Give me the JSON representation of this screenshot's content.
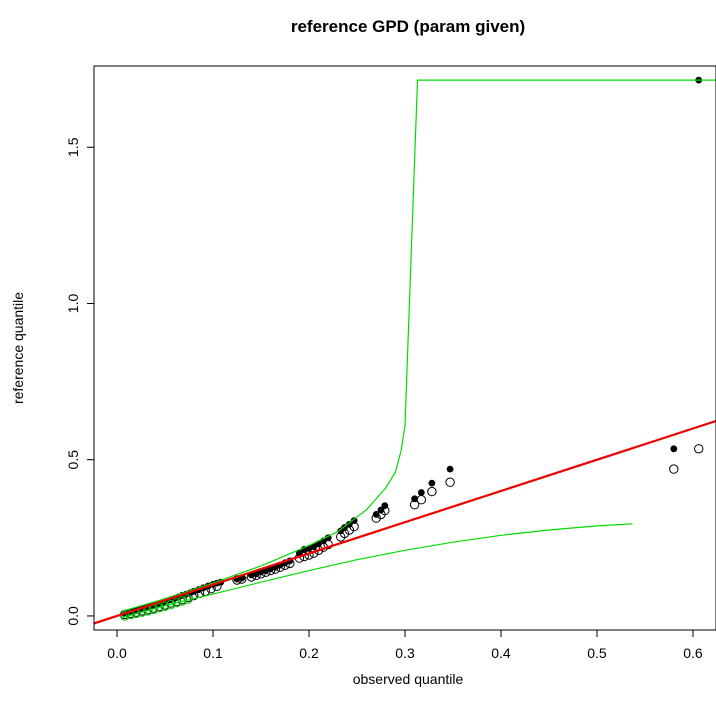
{
  "chart_data": {
    "type": "scatter",
    "title": "reference GPD (param given)",
    "xlabel": "observed quantile",
    "ylabel": "reference quantile",
    "xlim": [
      -0.024,
      0.624
    ],
    "ylim": [
      -0.045,
      1.76
    ],
    "x_ticks": [
      0.0,
      0.1,
      0.2,
      0.3,
      0.4,
      0.5,
      0.6
    ],
    "x_tick_labels": [
      "0.0",
      "0.1",
      "0.2",
      "0.3",
      "0.4",
      "0.5",
      "0.6"
    ],
    "y_ticks": [
      0.0,
      0.5,
      1.0,
      1.5
    ],
    "y_tick_labels": [
      "0.0",
      "0.5",
      "1.0",
      "1.5"
    ],
    "grid": false,
    "series": [
      {
        "marker": "filled-circle",
        "color": "#000000",
        "points": [
          [
            0.008,
            0.008
          ],
          [
            0.012,
            0.01
          ],
          [
            0.016,
            0.014
          ],
          [
            0.02,
            0.017
          ],
          [
            0.024,
            0.021
          ],
          [
            0.028,
            0.025
          ],
          [
            0.032,
            0.028
          ],
          [
            0.036,
            0.032
          ],
          [
            0.04,
            0.036
          ],
          [
            0.044,
            0.04
          ],
          [
            0.048,
            0.044
          ],
          [
            0.052,
            0.048
          ],
          [
            0.056,
            0.052
          ],
          [
            0.06,
            0.056
          ],
          [
            0.064,
            0.061
          ],
          [
            0.068,
            0.066
          ],
          [
            0.072,
            0.07
          ],
          [
            0.076,
            0.074
          ],
          [
            0.08,
            0.079
          ],
          [
            0.085,
            0.084
          ],
          [
            0.09,
            0.09
          ],
          [
            0.095,
            0.096
          ],
          [
            0.1,
            0.101
          ],
          [
            0.104,
            0.105
          ],
          [
            0.108,
            0.108
          ],
          [
            0.125,
            0.118
          ],
          [
            0.13,
            0.121
          ],
          [
            0.14,
            0.131
          ],
          [
            0.145,
            0.135
          ],
          [
            0.15,
            0.141
          ],
          [
            0.155,
            0.145
          ],
          [
            0.16,
            0.151
          ],
          [
            0.165,
            0.156
          ],
          [
            0.17,
            0.163
          ],
          [
            0.175,
            0.17
          ],
          [
            0.18,
            0.176
          ],
          [
            0.19,
            0.2
          ],
          [
            0.195,
            0.213
          ],
          [
            0.2,
            0.216
          ],
          [
            0.205,
            0.222
          ],
          [
            0.21,
            0.231
          ],
          [
            0.215,
            0.24
          ],
          [
            0.22,
            0.25
          ],
          [
            0.233,
            0.272
          ],
          [
            0.237,
            0.283
          ],
          [
            0.242,
            0.293
          ],
          [
            0.247,
            0.305
          ],
          [
            0.27,
            0.325
          ],
          [
            0.275,
            0.339
          ],
          [
            0.279,
            0.353
          ],
          [
            0.31,
            0.375
          ],
          [
            0.317,
            0.395
          ],
          [
            0.328,
            0.425
          ],
          [
            0.347,
            0.47
          ],
          [
            0.58,
            0.535
          ],
          [
            0.606,
            1.715
          ]
        ]
      },
      {
        "marker": "open-circle",
        "color": "#000000",
        "points": [
          [
            0.008,
            0.005
          ],
          [
            0.014,
            0.008
          ],
          [
            0.02,
            0.012
          ],
          [
            0.026,
            0.016
          ],
          [
            0.032,
            0.02
          ],
          [
            0.038,
            0.025
          ],
          [
            0.044,
            0.03
          ],
          [
            0.05,
            0.035
          ],
          [
            0.056,
            0.041
          ],
          [
            0.062,
            0.046
          ],
          [
            0.068,
            0.052
          ],
          [
            0.074,
            0.059
          ],
          [
            0.08,
            0.065
          ],
          [
            0.086,
            0.072
          ],
          [
            0.092,
            0.079
          ],
          [
            0.098,
            0.087
          ],
          [
            0.104,
            0.095
          ],
          [
            0.125,
            0.115
          ],
          [
            0.13,
            0.118
          ],
          [
            0.14,
            0.125
          ],
          [
            0.145,
            0.13
          ],
          [
            0.15,
            0.135
          ],
          [
            0.155,
            0.14
          ],
          [
            0.16,
            0.145
          ],
          [
            0.165,
            0.15
          ],
          [
            0.17,
            0.156
          ],
          [
            0.175,
            0.162
          ],
          [
            0.18,
            0.168
          ],
          [
            0.19,
            0.185
          ],
          [
            0.195,
            0.19
          ],
          [
            0.2,
            0.195
          ],
          [
            0.205,
            0.201
          ],
          [
            0.21,
            0.21
          ],
          [
            0.215,
            0.22
          ],
          [
            0.22,
            0.229
          ],
          [
            0.233,
            0.253
          ],
          [
            0.237,
            0.264
          ],
          [
            0.242,
            0.275
          ],
          [
            0.247,
            0.286
          ],
          [
            0.27,
            0.313
          ],
          [
            0.275,
            0.325
          ],
          [
            0.279,
            0.337
          ],
          [
            0.31,
            0.356
          ],
          [
            0.317,
            0.372
          ],
          [
            0.328,
            0.398
          ],
          [
            0.347,
            0.428
          ],
          [
            0.58,
            0.47
          ],
          [
            0.606,
            0.535
          ]
        ]
      },
      {
        "marker": "open-circle",
        "color": "#00CC00",
        "points": [
          [
            0.008,
            0.0
          ],
          [
            0.014,
            0.004
          ],
          [
            0.02,
            0.008
          ],
          [
            0.026,
            0.012
          ],
          [
            0.032,
            0.016
          ],
          [
            0.038,
            0.021
          ],
          [
            0.044,
            0.026
          ],
          [
            0.05,
            0.031
          ],
          [
            0.056,
            0.036
          ],
          [
            0.062,
            0.042
          ],
          [
            0.068,
            0.048
          ],
          [
            0.074,
            0.054
          ]
        ]
      },
      {
        "line": "upper-band",
        "color": "#00DD00",
        "points": [
          [
            0.005,
            0.015
          ],
          [
            0.02,
            0.028
          ],
          [
            0.05,
            0.055
          ],
          [
            0.1,
            0.105
          ],
          [
            0.15,
            0.16
          ],
          [
            0.2,
            0.225
          ],
          [
            0.23,
            0.27
          ],
          [
            0.26,
            0.34
          ],
          [
            0.28,
            0.41
          ],
          [
            0.29,
            0.46
          ],
          [
            0.296,
            0.53
          ],
          [
            0.3,
            0.61
          ],
          [
            0.313,
            1.715
          ],
          [
            0.624,
            1.715
          ]
        ]
      },
      {
        "line": "lower-band",
        "color": "#00DD00",
        "points": [
          [
            0.005,
            -0.005
          ],
          [
            0.05,
            0.033
          ],
          [
            0.1,
            0.07
          ],
          [
            0.15,
            0.108
          ],
          [
            0.2,
            0.145
          ],
          [
            0.25,
            0.18
          ],
          [
            0.3,
            0.21
          ],
          [
            0.35,
            0.236
          ],
          [
            0.4,
            0.258
          ],
          [
            0.45,
            0.275
          ],
          [
            0.5,
            0.288
          ],
          [
            0.537,
            0.295
          ]
        ]
      },
      {
        "line": "reference-line",
        "color": "#EE0000",
        "points": [
          [
            -0.024,
            -0.024
          ],
          [
            0.624,
            0.624
          ]
        ]
      }
    ]
  }
}
